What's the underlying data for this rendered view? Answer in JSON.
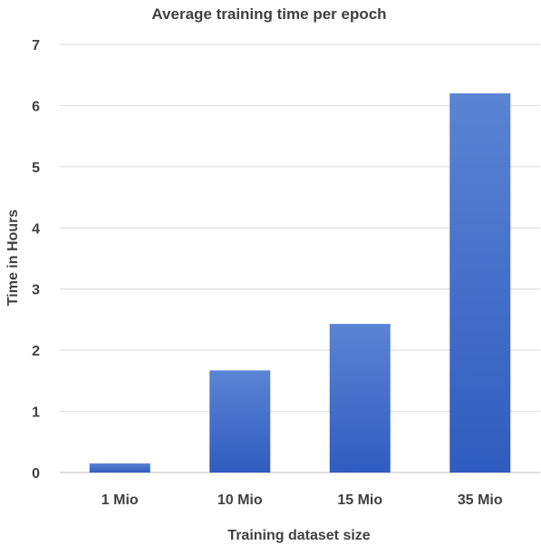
{
  "chart_data": {
    "type": "bar",
    "title": "Average training time per epoch",
    "xlabel": "Training dataset size",
    "ylabel": "Time in Hours",
    "categories": [
      "1 Mio",
      "10 Mio",
      "15 Mio",
      "35 Mio"
    ],
    "values": [
      0.15,
      1.67,
      2.43,
      6.2
    ],
    "ylim": [
      0,
      7
    ],
    "yticks": [
      "0",
      "1",
      "2",
      "3",
      "4",
      "5",
      "6",
      "7"
    ],
    "grid": true,
    "legend": "none",
    "colors": {
      "bar_top": "#5b84d4",
      "bar_bottom": "#2f5cbf",
      "text": "#404040",
      "grid": "#d9d9d9"
    }
  }
}
